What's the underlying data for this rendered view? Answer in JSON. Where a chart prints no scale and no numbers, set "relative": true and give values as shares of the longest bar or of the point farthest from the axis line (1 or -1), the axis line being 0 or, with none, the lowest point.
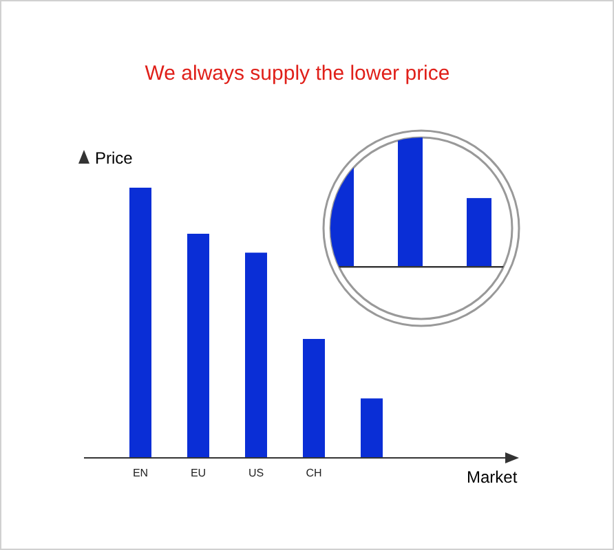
{
  "chart_data": {
    "type": "bar",
    "title": "We always supply the lower price",
    "xlabel": "Market",
    "ylabel": "Price",
    "categories": [
      "EN",
      "EU",
      "US",
      "CH",
      null
    ],
    "values": [
      1,
      0.83,
      0.76,
      0.44,
      0.22
    ],
    "color": "#0a2ed6",
    "relative": true
  }
}
